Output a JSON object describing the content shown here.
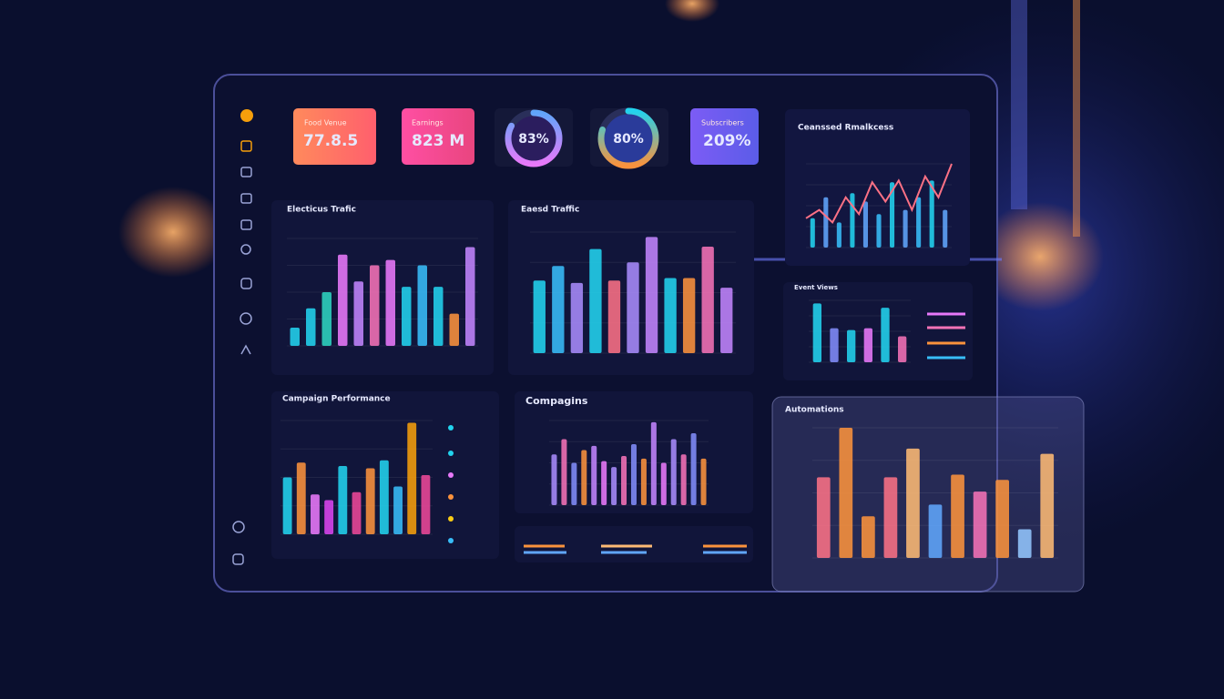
{
  "kpis": [
    {
      "label": "Food Venue",
      "value": "77.8.5"
    },
    {
      "label": "Earnings",
      "value": "823 M"
    },
    {
      "value": "83%",
      "percent": 83
    },
    {
      "value": "80%",
      "percent": 80
    },
    {
      "label": "Subscribers",
      "value": "209%"
    }
  ],
  "panels": [
    {
      "title": "Electicus Trafic",
      "ylim": [
        0,
        100
      ],
      "colors": [
        "#22d3ee",
        "#22d3ee",
        "#2dd4bf",
        "#e879f9",
        "#c084fc",
        "#f472b6",
        "#e879f9",
        "#22d3ee",
        "#38bdf8",
        "#22d3ee",
        "#fb923c",
        "#c084fc"
      ],
      "values": [
        17,
        35,
        50,
        85,
        60,
        75,
        80,
        55,
        75,
        55,
        30,
        92
      ]
    },
    {
      "title": "Eaesd Traffic",
      "ylim": [
        0,
        100
      ],
      "colors": [
        "#22d3ee",
        "#38bdf8",
        "#a78bfa",
        "#22d3ee",
        "#fb7185",
        "#a78bfa",
        "#c084fc",
        "#22d3ee",
        "#fb923c",
        "#f472b6",
        "#c084fc"
      ],
      "values": [
        60,
        72,
        58,
        86,
        60,
        75,
        96,
        62,
        62,
        88,
        54
      ]
    },
    {
      "title": "Ceanssed Rmalkcess",
      "ylim": [
        0,
        100
      ],
      "colors": [
        "#22d3ee",
        "#60a5fa",
        "#38bdf8"
      ],
      "values": [
        35,
        60,
        30,
        65,
        55,
        40,
        78,
        45,
        60,
        80,
        45
      ],
      "line": [
        35,
        45,
        30,
        60,
        40,
        78,
        55,
        80,
        45,
        85,
        60,
        100
      ]
    },
    {
      "title": "Event Views",
      "ylim": [
        0,
        100
      ],
      "colors": [
        "#22d3ee",
        "#818cf8",
        "#22d3ee",
        "#e879f9",
        "#22d3ee",
        "#f472b6"
      ],
      "values": [
        95,
        55,
        52,
        55,
        88,
        42
      ]
    },
    {
      "title": "Campaign Performance",
      "ylim": [
        0,
        100
      ],
      "colors": [
        "#22d3ee",
        "#fb923c",
        "#e879f9",
        "#d946ef",
        "#22d3ee",
        "#ec4899",
        "#fb923c",
        "#22d3ee",
        "#38bdf8",
        "#f59e0b",
        "#ec4899"
      ],
      "values": [
        50,
        63,
        35,
        30,
        60,
        37,
        58,
        65,
        42,
        98,
        52
      ]
    },
    {
      "title": "Compagins",
      "ylim": [
        0,
        100
      ],
      "colors": [
        "#a78bfa",
        "#f472b6",
        "#818cf8",
        "#fb923c",
        "#c084fc",
        "#e879f9"
      ],
      "values": [
        60,
        78,
        50,
        65,
        70,
        52,
        45,
        58,
        72,
        55,
        98,
        50,
        78,
        60,
        85,
        55
      ]
    },
    {
      "title": "Automations",
      "ylim": [
        0,
        100
      ],
      "colors": [
        "#fb7185",
        "#fb923c",
        "#fb923c",
        "#fb7185",
        "#fdba74",
        "#60a5fa",
        "#fb923c",
        "#f472b6",
        "#fb923c",
        "#93c5fd",
        "#fdba74"
      ],
      "values": [
        62,
        100,
        32,
        62,
        84,
        41,
        64,
        51,
        60,
        22,
        80
      ]
    }
  ]
}
